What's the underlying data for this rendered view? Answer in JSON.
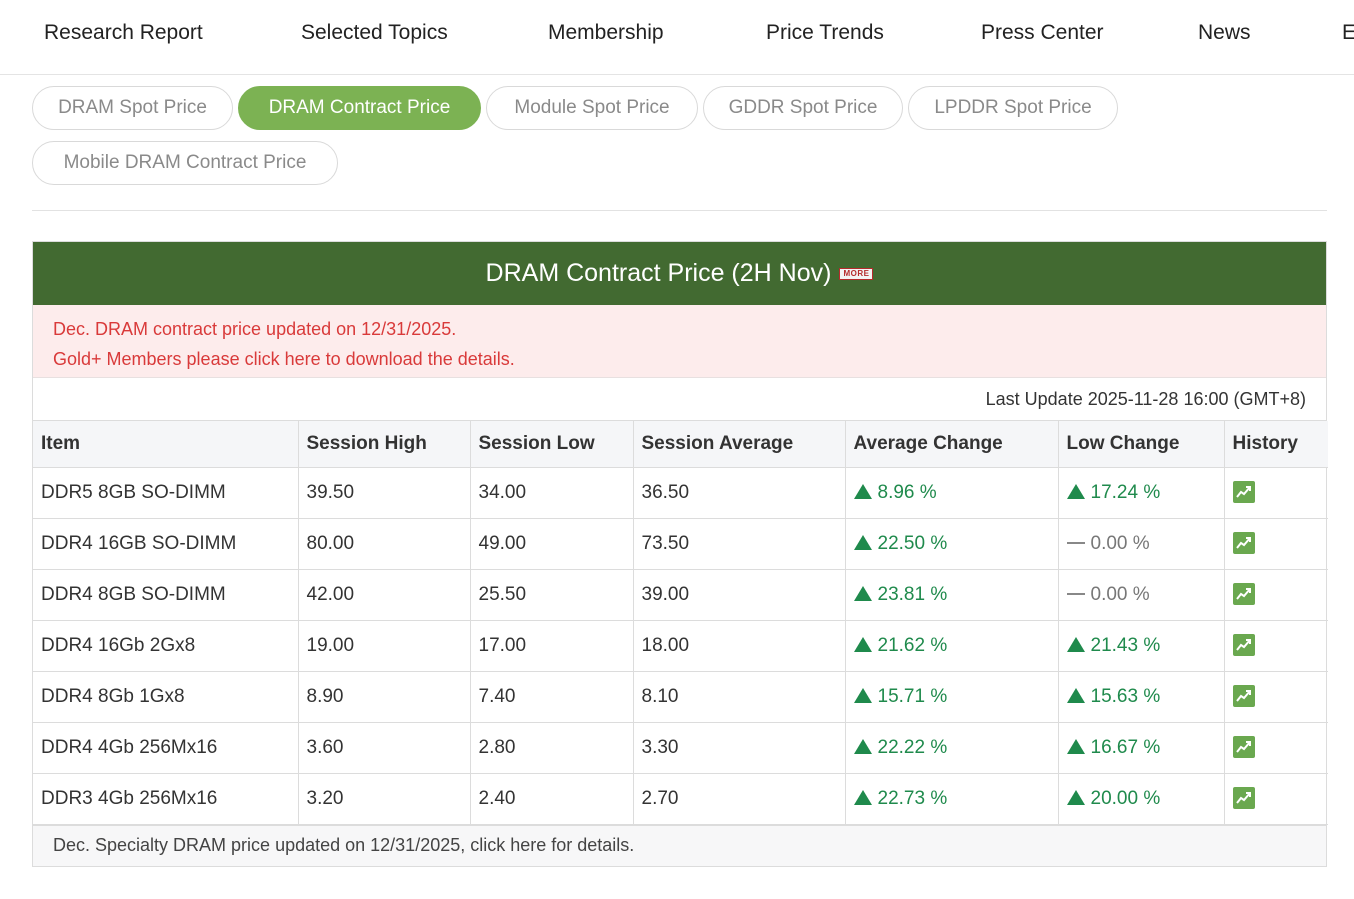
{
  "nav": {
    "items": [
      "Research Report",
      "Selected Topics",
      "Membership",
      "Price Trends",
      "Press Center",
      "News",
      "E"
    ]
  },
  "tabs": [
    {
      "label": "DRAM Spot Price",
      "active": false
    },
    {
      "label": "DRAM Contract Price",
      "active": true
    },
    {
      "label": "Module Spot Price",
      "active": false
    },
    {
      "label": "GDDR Spot Price",
      "active": false
    },
    {
      "label": "LPDDR Spot Price",
      "active": false
    },
    {
      "label": "Mobile DRAM Contract Price",
      "active": false
    }
  ],
  "panel": {
    "title": "DRAM Contract Price (2H Nov)",
    "more_badge": "MORE",
    "notice_line1": "Dec. DRAM contract price updated on 12/31/2025.",
    "notice_line2": "Gold+ Members please click here to download the details.",
    "last_update": "Last Update 2025-11-28 16:00 (GMT+8)",
    "footer": "Dec. Specialty DRAM price updated on 12/31/2025, click here for details."
  },
  "colors": {
    "header_green": "#426a31",
    "active_pill": "#7cb253",
    "up_green": "#1f8a4c",
    "notice_red": "#d93a3a"
  },
  "table": {
    "headers": [
      "Item",
      "Session High",
      "Session Low",
      "Session Average",
      "Average Change",
      "Low Change",
      "History"
    ],
    "rows": [
      {
        "item": "DDR5 8GB SO-DIMM",
        "high": "39.50",
        "low": "34.00",
        "avg": "36.50",
        "avg_change": "8.96 %",
        "avg_dir": "up",
        "low_change": "17.24 %",
        "low_dir": "up",
        "history_icon": "trend-chart-icon"
      },
      {
        "item": "DDR4 16GB SO-DIMM",
        "high": "80.00",
        "low": "49.00",
        "avg": "73.50",
        "avg_change": "22.50 %",
        "avg_dir": "up",
        "low_change": "0.00 %",
        "low_dir": "flat",
        "history_icon": "trend-chart-icon"
      },
      {
        "item": "DDR4 8GB SO-DIMM",
        "high": "42.00",
        "low": "25.50",
        "avg": "39.00",
        "avg_change": "23.81 %",
        "avg_dir": "up",
        "low_change": "0.00 %",
        "low_dir": "flat",
        "history_icon": "trend-chart-icon"
      },
      {
        "item": "DDR4 16Gb 2Gx8",
        "high": "19.00",
        "low": "17.00",
        "avg": "18.00",
        "avg_change": "21.62 %",
        "avg_dir": "up",
        "low_change": "21.43 %",
        "low_dir": "up",
        "history_icon": "trend-chart-icon"
      },
      {
        "item": "DDR4 8Gb 1Gx8",
        "high": "8.90",
        "low": "7.40",
        "avg": "8.10",
        "avg_change": "15.71 %",
        "avg_dir": "up",
        "low_change": "15.63 %",
        "low_dir": "up",
        "history_icon": "trend-chart-icon"
      },
      {
        "item": "DDR4 4Gb 256Mx16",
        "high": "3.60",
        "low": "2.80",
        "avg": "3.30",
        "avg_change": "22.22 %",
        "avg_dir": "up",
        "low_change": "16.67 %",
        "low_dir": "up",
        "history_icon": "trend-chart-icon"
      },
      {
        "item": "DDR3 4Gb 256Mx16",
        "high": "3.20",
        "low": "2.40",
        "avg": "2.70",
        "avg_change": "22.73 %",
        "avg_dir": "up",
        "low_change": "20.00 %",
        "low_dir": "up",
        "history_icon": "trend-chart-icon"
      }
    ]
  }
}
